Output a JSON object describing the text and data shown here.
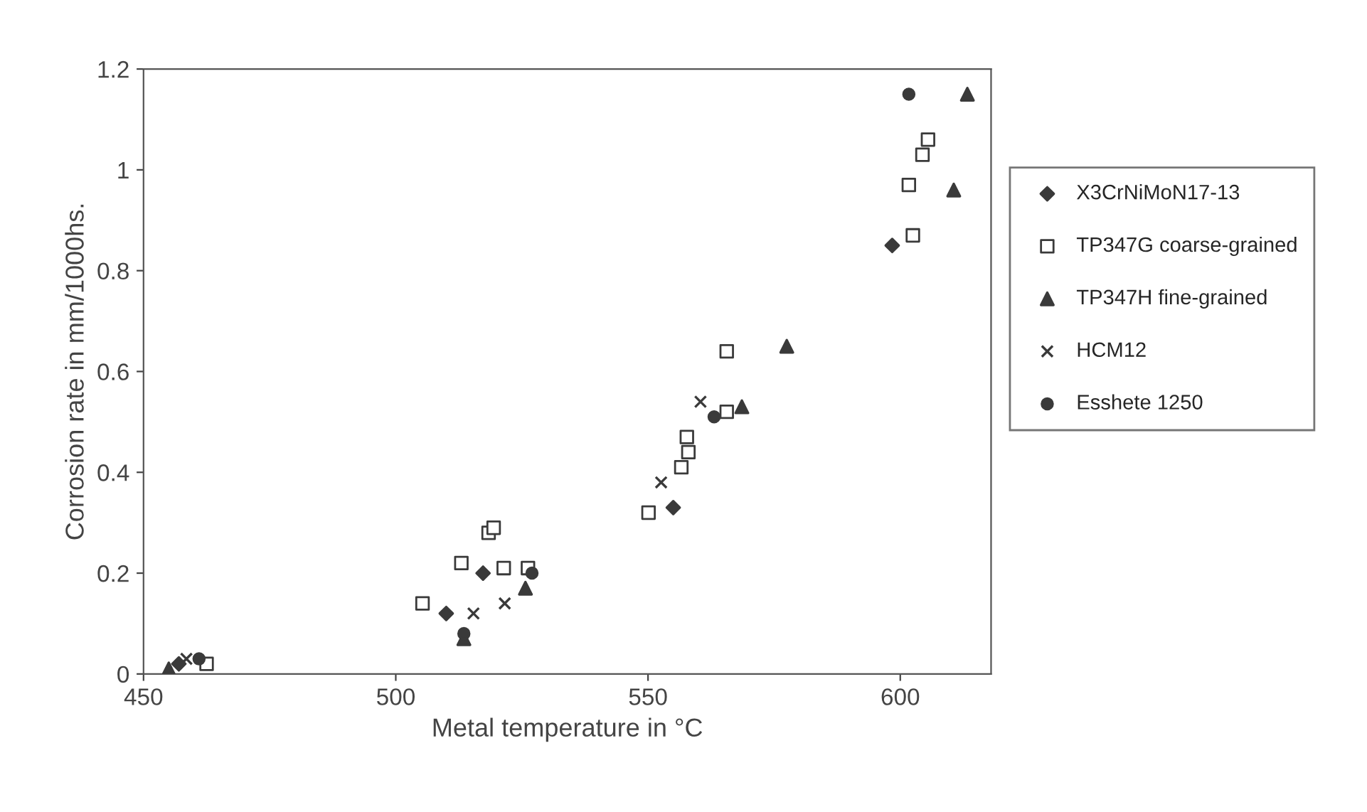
{
  "chart_data": {
    "type": "scatter",
    "xlabel": "Metal temperature in °C",
    "ylabel": "Corrosion rate in mm/1000hs.",
    "xlim": [
      450,
      618
    ],
    "xticks": [
      450,
      500,
      550,
      600
    ],
    "ylim": [
      0,
      1.2
    ],
    "yticks": [
      0,
      0.2,
      0.4,
      0.6,
      0.8,
      1,
      1.2
    ],
    "grid": false,
    "legend": "right",
    "series": [
      {
        "name": "X3CrNiMoN17-13",
        "color": "#3a3a3a",
        "marker": "diamond",
        "x": [
          457,
          510,
          517.3,
          555,
          598.4
        ],
        "values": [
          0.02,
          0.12,
          0.2,
          0.33,
          0.85
        ]
      },
      {
        "name": "TP347G coarse-grained",
        "color": "#3a3a3a",
        "marker": "square",
        "x": [
          462.5,
          505.3,
          513,
          518.4,
          519.4,
          521.4,
          526.2,
          550.1,
          556.6,
          557.7,
          558,
          565.6,
          565.6,
          601.7,
          602.5,
          604.4,
          605.5
        ],
        "values": [
          0.02,
          0.14,
          0.22,
          0.28,
          0.29,
          0.21,
          0.21,
          0.32,
          0.41,
          0.47,
          0.44,
          0.52,
          0.64,
          0.97,
          0.87,
          1.03,
          1.06
        ]
      },
      {
        "name": "TP347H fine-grained",
        "color": "#3a3a3a",
        "marker": "triangle",
        "x": [
          455,
          513.5,
          525.7,
          568.6,
          577.5,
          610.6,
          613.3
        ],
        "values": [
          0.01,
          0.07,
          0.17,
          0.53,
          0.65,
          0.96,
          1.15
        ]
      },
      {
        "name": "HCM12",
        "color": "#3a3a3a",
        "marker": "cross",
        "x": [
          458.5,
          515.4,
          521.6,
          552.6,
          560.4
        ],
        "values": [
          0.03,
          0.12,
          0.14,
          0.38,
          0.54
        ]
      },
      {
        "name": "Esshete 1250",
        "color": "#3a3a3a",
        "marker": "circle",
        "x": [
          461,
          513.5,
          527,
          563.1,
          601.7
        ],
        "values": [
          0.03,
          0.08,
          0.2,
          0.51,
          1.15
        ]
      }
    ]
  }
}
